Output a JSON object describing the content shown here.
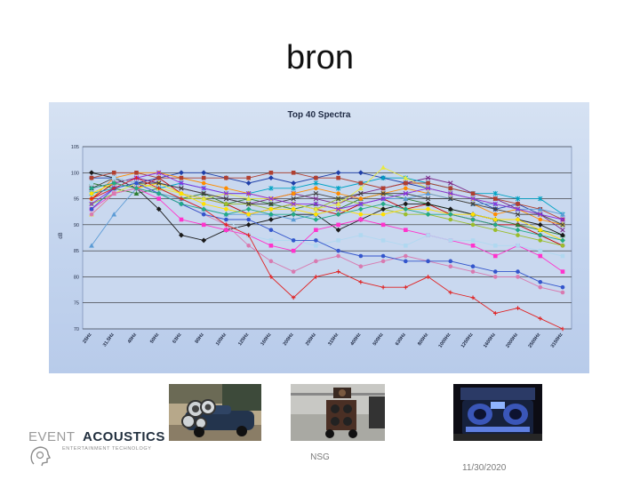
{
  "slide": {
    "title": "bron",
    "footer_center": "NSG",
    "footer_date": "11/30/2020"
  },
  "logo": {
    "word1": "EVENT",
    "word2": "ACOUSTICS",
    "tagline": "ENTERTAINMENT TECHNOLOGY",
    "color_event": "#9a9a9a",
    "color_acoustics": "#22303f"
  },
  "photos": [
    {
      "name": "car-with-speakers-photo"
    },
    {
      "name": "speaker-cart-photo"
    },
    {
      "name": "car-trunk-speakers-photo"
    }
  ],
  "chart_data": {
    "type": "line",
    "title": "Top 40 Spectra",
    "xlabel": "",
    "ylabel": "dB",
    "ylim": [
      70,
      105
    ],
    "yticks": [
      70,
      75,
      80,
      85,
      90,
      95,
      100,
      105
    ],
    "grid": true,
    "legend": "none",
    "categories": [
      "25Hz",
      "31.5Hz",
      "40Hz",
      "50Hz",
      "63Hz",
      "80Hz",
      "100Hz",
      "125Hz",
      "160Hz",
      "200Hz",
      "250Hz",
      "315Hz",
      "400Hz",
      "500Hz",
      "630Hz",
      "800Hz",
      "1000Hz",
      "1250Hz",
      "1600Hz",
      "2000Hz",
      "2500Hz",
      "3150Hz"
    ],
    "series": [
      {
        "color": "#c00000",
        "marker": "circle",
        "values": [
          95,
          98,
          97,
          99,
          96,
          95,
          94,
          92,
          93,
          94,
          93,
          92,
          94,
          95,
          93,
          94,
          92,
          91,
          90,
          90,
          88,
          86
        ]
      },
      {
        "color": "#1f3fa8",
        "marker": "diamond",
        "values": [
          99,
          99,
          98,
          99,
          100,
          100,
          99,
          98,
          99,
          98,
          99,
          100,
          100,
          99,
          98,
          97,
          96,
          95,
          93,
          94,
          92,
          90
        ]
      },
      {
        "color": "#2e7d32",
        "marker": "triangle",
        "values": [
          98,
          97,
          96,
          97,
          95,
          96,
          94,
          95,
          94,
          93,
          94,
          93,
          95,
          96,
          95,
          94,
          93,
          92,
          91,
          90,
          89,
          88
        ]
      },
      {
        "color": "#7b2a8a",
        "marker": "x",
        "values": [
          97,
          98,
          99,
          98,
          97,
          96,
          95,
          94,
          95,
          96,
          95,
          94,
          96,
          97,
          98,
          99,
          98,
          96,
          95,
          93,
          92,
          89
        ]
      },
      {
        "color": "#00a3c4",
        "marker": "star",
        "values": [
          96,
          97,
          98,
          97,
          98,
          97,
          96,
          96,
          97,
          97,
          98,
          97,
          98,
          99,
          99,
          98,
          97,
          96,
          96,
          95,
          95,
          92
        ]
      },
      {
        "color": "#ff8c00",
        "marker": "circle",
        "values": [
          95,
          99,
          100,
          100,
          99,
          98,
          97,
          96,
          95,
          96,
          97,
          96,
          95,
          96,
          97,
          96,
          95,
          94,
          92,
          93,
          91,
          90
        ]
      },
      {
        "color": "#9bbd2c",
        "marker": "circle",
        "values": [
          94,
          96,
          97,
          96,
          95,
          95,
          94,
          94,
          93,
          94,
          93,
          95,
          94,
          93,
          92,
          92,
          91,
          90,
          89,
          88,
          87,
          86
        ]
      },
      {
        "color": "#1a1a1a",
        "marker": "diamond",
        "values": [
          100,
          99,
          97,
          93,
          88,
          87,
          89,
          90,
          91,
          92,
          92,
          89,
          91,
          93,
          94,
          94,
          93,
          92,
          91,
          91,
          90,
          88
        ]
      },
      {
        "color": "#e8e840",
        "marker": "triangle",
        "values": [
          92,
          96,
          98,
          97,
          96,
          95,
          96,
          95,
          95,
          94,
          93,
          94,
          97,
          101,
          99,
          97,
          96,
          95,
          94,
          93,
          92,
          90
        ]
      },
      {
        "color": "#b04030",
        "marker": "square",
        "values": [
          99,
          100,
          100,
          99,
          99,
          99,
          99,
          99,
          100,
          100,
          99,
          99,
          98,
          97,
          98,
          98,
          97,
          96,
          95,
          94,
          93,
          91
        ]
      },
      {
        "color": "#5b9bd5",
        "marker": "triangle",
        "values": [
          86,
          92,
          97,
          96,
          95,
          93,
          92,
          92,
          92,
          91,
          92,
          93,
          94,
          95,
          95,
          96,
          95,
          94,
          94,
          93,
          93,
          92
        ]
      },
      {
        "color": "#ff33cc",
        "marker": "square",
        "values": [
          93,
          96,
          97,
          95,
          91,
          90,
          89,
          88,
          86,
          85,
          89,
          90,
          91,
          90,
          89,
          88,
          87,
          86,
          84,
          86,
          84,
          81
        ]
      },
      {
        "color": "#ffe000",
        "marker": "circle",
        "values": [
          96,
          98,
          97,
          98,
          96,
          94,
          93,
          92,
          93,
          93,
          92,
          93,
          92,
          92,
          93,
          93,
          92,
          92,
          91,
          91,
          89,
          87
        ]
      },
      {
        "color": "#404040",
        "marker": "x",
        "values": [
          97,
          99,
          98,
          98,
          97,
          96,
          95,
          94,
          94,
          95,
          96,
          95,
          96,
          96,
          96,
          95,
          95,
          94,
          93,
          92,
          92,
          90
        ]
      },
      {
        "color": "#8a2be2",
        "marker": "x",
        "values": [
          94,
          97,
          99,
          100,
          98,
          97,
          96,
          96,
          95,
          94,
          94,
          93,
          94,
          95,
          96,
          97,
          96,
          95,
          94,
          93,
          92,
          91
        ]
      },
      {
        "color": "#b0d8f0",
        "marker": "square",
        "values": [
          98,
          99,
          98,
          96,
          94,
          92,
          91,
          88,
          87,
          87,
          86,
          87,
          88,
          87,
          86,
          88,
          87,
          87,
          86,
          86,
          85,
          84
        ]
      },
      {
        "color": "#d87ab0",
        "marker": "circle",
        "values": [
          92,
          96,
          97,
          96,
          94,
          92,
          90,
          86,
          83,
          81,
          83,
          84,
          82,
          83,
          84,
          83,
          82,
          81,
          80,
          80,
          78,
          77
        ]
      },
      {
        "color": "#3355cc",
        "marker": "circle",
        "values": [
          93,
          97,
          98,
          96,
          94,
          92,
          91,
          91,
          89,
          87,
          87,
          85,
          84,
          84,
          83,
          83,
          83,
          82,
          81,
          81,
          79,
          78
        ]
      },
      {
        "color": "#e02020",
        "marker": "plus",
        "values": [
          95,
          97,
          99,
          97,
          95,
          93,
          90,
          88,
          80,
          76,
          80,
          81,
          79,
          78,
          78,
          80,
          77,
          76,
          73,
          74,
          72,
          70
        ]
      },
      {
        "color": "#22aa88",
        "marker": "diamond",
        "values": [
          97,
          98,
          97,
          96,
          94,
          93,
          92,
          93,
          92,
          92,
          91,
          92,
          93,
          94,
          93,
          92,
          92,
          91,
          90,
          89,
          88,
          87
        ]
      }
    ]
  }
}
